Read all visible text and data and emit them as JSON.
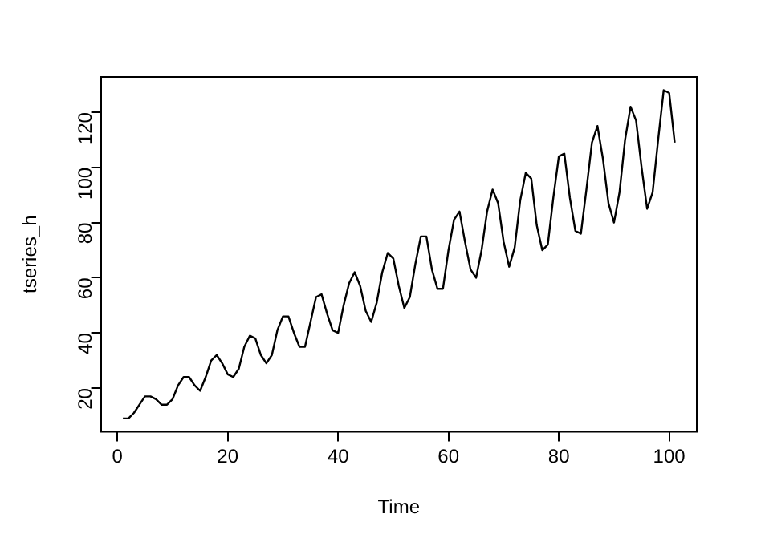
{
  "chart_data": {
    "type": "line",
    "xlabel": "Time",
    "ylabel": "tseries_h",
    "grid": false,
    "legend": false,
    "marker": "none",
    "line_style": "solid",
    "x": [
      1,
      2,
      3,
      4,
      5,
      6,
      7,
      8,
      9,
      10,
      11,
      12,
      13,
      14,
      15,
      16,
      17,
      18,
      19,
      20,
      21,
      22,
      23,
      24,
      25,
      26,
      27,
      28,
      29,
      30,
      31,
      32,
      33,
      34,
      35,
      36,
      37,
      38,
      39,
      40,
      41,
      42,
      43,
      44,
      45,
      46,
      47,
      48,
      49,
      50,
      51,
      52,
      53,
      54,
      55,
      56,
      57,
      58,
      59,
      60,
      61,
      62,
      63,
      64,
      65,
      66,
      67,
      68,
      69,
      70,
      71,
      72,
      73,
      74,
      75,
      76,
      77,
      78,
      79,
      80,
      81,
      82,
      83,
      84,
      85,
      86,
      87,
      88,
      89,
      90,
      91,
      92,
      93,
      94,
      95,
      96,
      97,
      98,
      99,
      100,
      101
    ],
    "series": [
      {
        "color": "#000000",
        "values": [
          9,
          9,
          11,
          14,
          17,
          17,
          16,
          14,
          14,
          16,
          21,
          24,
          24,
          21,
          19,
          24,
          30,
          32,
          29,
          25,
          24,
          27,
          35,
          39,
          38,
          32,
          29,
          32,
          41,
          46,
          46,
          40,
          35,
          35,
          44,
          53,
          54,
          47,
          41,
          40,
          50,
          58,
          62,
          57,
          48,
          44,
          51,
          62,
          69,
          67,
          57,
          49,
          53,
          65,
          75,
          75,
          63,
          56,
          56,
          70,
          81,
          84,
          73,
          63,
          60,
          70,
          84,
          92,
          87,
          73,
          64,
          71,
          88,
          98,
          96,
          79,
          70,
          72,
          89,
          104,
          105,
          89,
          77,
          76,
          92,
          109,
          115,
          103,
          87,
          80,
          91,
          110,
          122,
          117,
          100,
          85,
          91,
          110,
          128,
          127,
          109
        ]
      }
    ],
    "xlim": [
      -3,
      105
    ],
    "xticks": [
      0,
      20,
      40,
      60,
      80,
      100
    ],
    "ylim": [
      4.2,
      132.8
    ],
    "yticks": [
      20,
      40,
      60,
      80,
      100,
      120
    ]
  }
}
